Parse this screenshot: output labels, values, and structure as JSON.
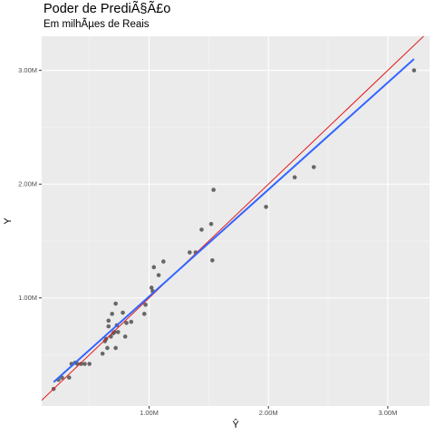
{
  "chart_data": {
    "type": "scatter",
    "title": "Poder de PrediÃ§Ã£o",
    "subtitle": "Em milhÃµes de Reais",
    "xlabel": "Ŷ",
    "ylabel": "Y",
    "x_tick_labels": [
      "1.00M",
      "2.00M",
      "3.00M"
    ],
    "y_tick_labels": [
      "1.00M",
      "2.00M",
      "3.00M"
    ],
    "x_ticks": [
      1000000,
      2000000,
      3000000
    ],
    "y_ticks": [
      1000000,
      2000000,
      3000000
    ],
    "xlim": [
      100000,
      3350000
    ],
    "ylim": [
      50000,
      3300000
    ],
    "grid": true,
    "points": [
      {
        "x": 200000,
        "y": 200000
      },
      {
        "x": 240000,
        "y": 280000
      },
      {
        "x": 270000,
        "y": 300000
      },
      {
        "x": 330000,
        "y": 300000
      },
      {
        "x": 350000,
        "y": 420000
      },
      {
        "x": 380000,
        "y": 430000
      },
      {
        "x": 400000,
        "y": 420000
      },
      {
        "x": 430000,
        "y": 420000
      },
      {
        "x": 460000,
        "y": 420000
      },
      {
        "x": 500000,
        "y": 420000
      },
      {
        "x": 610000,
        "y": 510000
      },
      {
        "x": 630000,
        "y": 620000
      },
      {
        "x": 640000,
        "y": 640000
      },
      {
        "x": 650000,
        "y": 560000
      },
      {
        "x": 660000,
        "y": 750000
      },
      {
        "x": 660000,
        "y": 800000
      },
      {
        "x": 680000,
        "y": 660000
      },
      {
        "x": 690000,
        "y": 860000
      },
      {
        "x": 700000,
        "y": 690000
      },
      {
        "x": 710000,
        "y": 700000
      },
      {
        "x": 720000,
        "y": 560000
      },
      {
        "x": 720000,
        "y": 950000
      },
      {
        "x": 730000,
        "y": 760000
      },
      {
        "x": 740000,
        "y": 700000
      },
      {
        "x": 780000,
        "y": 870000
      },
      {
        "x": 800000,
        "y": 660000
      },
      {
        "x": 810000,
        "y": 780000
      },
      {
        "x": 850000,
        "y": 790000
      },
      {
        "x": 960000,
        "y": 860000
      },
      {
        "x": 970000,
        "y": 940000
      },
      {
        "x": 1020000,
        "y": 1090000
      },
      {
        "x": 1030000,
        "y": 1060000
      },
      {
        "x": 1040000,
        "y": 1270000
      },
      {
        "x": 1080000,
        "y": 1200000
      },
      {
        "x": 1120000,
        "y": 1320000
      },
      {
        "x": 1340000,
        "y": 1400000
      },
      {
        "x": 1390000,
        "y": 1400000
      },
      {
        "x": 1440000,
        "y": 1600000
      },
      {
        "x": 1520000,
        "y": 1650000
      },
      {
        "x": 1530000,
        "y": 1330000
      },
      {
        "x": 1540000,
        "y": 1950000
      },
      {
        "x": 1980000,
        "y": 1800000
      },
      {
        "x": 2220000,
        "y": 2060000
      },
      {
        "x": 2380000,
        "y": 2150000
      },
      {
        "x": 3220000,
        "y": 3000000
      }
    ],
    "reference_line": {
      "slope": 1,
      "intercept": 0
    },
    "fit_line": {
      "x": [
        200000,
        3220000
      ],
      "y": [
        260000,
        3100000
      ]
    },
    "colors": {
      "panel_background": "#ebebeb",
      "grid_major": "#ffffff",
      "points": "#595959",
      "reference_line": "#e31a1c",
      "fit_line": "#3366ff",
      "axis_text": "#4d4d4d"
    }
  }
}
